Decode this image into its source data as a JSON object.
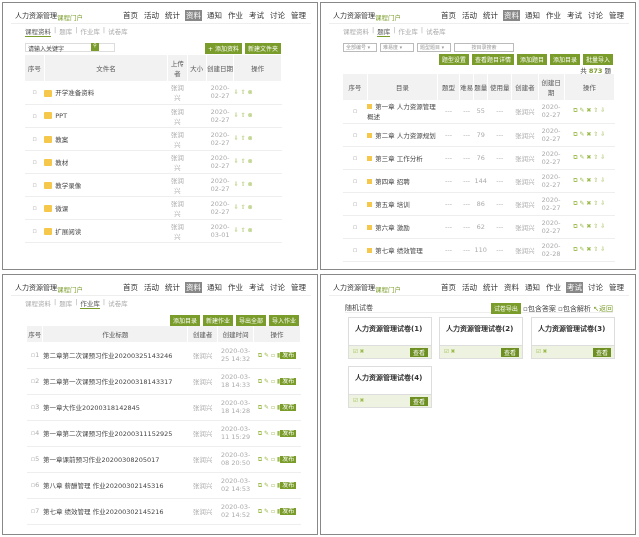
{
  "common": {
    "brand": "人力资源管理",
    "brand_sub": "课程门户",
    "nav": [
      "首页",
      "活动",
      "统计",
      "资料",
      "通知",
      "作业",
      "考试",
      "讨论",
      "管理"
    ],
    "subtabs": [
      "课程资料",
      "题库",
      "作业库",
      "试卷库"
    ],
    "author": "张润兴",
    "accent": "#7a9c2a"
  },
  "materials": {
    "active_nav": "资料",
    "active_tab": "课程资料",
    "search_placeholder": "请输入关键字",
    "add_btn": "+ 添加资料",
    "folder_btn": "新建文件夹",
    "headers": [
      "序号",
      "文件名",
      "上传者",
      "大小",
      "创建日期",
      "操作"
    ],
    "rows": [
      {
        "name": "开学准备资料",
        "date": "2020-02-27"
      },
      {
        "name": "PPT",
        "date": "2020-02-27"
      },
      {
        "name": "教案",
        "date": "2020-02-27"
      },
      {
        "name": "教材",
        "date": "2020-02-27"
      },
      {
        "name": "教学录像",
        "date": "2020-02-27"
      },
      {
        "name": "微课",
        "date": "2020-02-27"
      },
      {
        "name": "扩展阅读",
        "date": "2020-03-01"
      }
    ]
  },
  "bank": {
    "active_nav": "资料",
    "active_tab": "题库",
    "filters": [
      "全部编号",
      "难易度",
      "题型题目"
    ],
    "search_placeholder": "按目录搜索",
    "buttons": [
      "题型设置",
      "查看题目详情",
      "添加题目",
      "添加目录",
      "批量导入"
    ],
    "total_prefix": "共",
    "total": "873",
    "total_suffix": "题",
    "headers": [
      "序号",
      "目录",
      "题型",
      "难易",
      "题量",
      "使用量",
      "创建者",
      "创建日期",
      "操作"
    ],
    "rows": [
      {
        "name": "第一章 人力资源管理概述",
        "count": "55",
        "date": "2020-02-27"
      },
      {
        "name": "第二章 人力资源规划",
        "count": "79",
        "date": "2020-02-27"
      },
      {
        "name": "第三章 工作分析",
        "count": "76",
        "date": "2020-02-27"
      },
      {
        "name": "第四章 招聘",
        "count": "144",
        "date": "2020-02-27"
      },
      {
        "name": "第五章 培训",
        "count": "86",
        "date": "2020-02-27"
      },
      {
        "name": "第六章 激励",
        "count": "62",
        "date": "2020-02-27"
      },
      {
        "name": "第七章 绩效管理",
        "count": "110",
        "date": "2020-02-28"
      }
    ]
  },
  "homework": {
    "active_nav": "资料",
    "active_tab": "作业库",
    "buttons": [
      "添加目录",
      "新建作业",
      "导出全部",
      "导入作业"
    ],
    "headers": [
      "序号",
      "作业标题",
      "创建者",
      "创建时间",
      "操作"
    ],
    "publish": "发布",
    "rows": [
      {
        "no": "1",
        "title": "第二章第二次课预习作业20200325143246",
        "time": "2020-03-25 14:32"
      },
      {
        "no": "2",
        "title": "第二章第一次课预习作业20200318143317",
        "time": "2020-03-18 14:33"
      },
      {
        "no": "3",
        "title": "第一章大作业20200318142845",
        "time": "2020-03-18 14:28"
      },
      {
        "no": "4",
        "title": "第一章第二次课预习作业20200311152925",
        "time": "2020-03-11 15:29"
      },
      {
        "no": "5",
        "title": "第一章课前预习作业20200308205017",
        "time": "2020-03-08 20:50"
      },
      {
        "no": "6",
        "title": "第八章 薪酬管理 作业20200302145316",
        "time": "2020-03-02 14:53"
      },
      {
        "no": "7",
        "title": "第七章 绩效管理 作业20200302145216",
        "time": "2020-03-02 14:52"
      }
    ]
  },
  "exams": {
    "active_nav": "考试",
    "title": "随机试卷",
    "export_btn": "试卷导出",
    "opt1": "包含答案",
    "opt2": "包含解析",
    "back": "返回",
    "view": "查看",
    "papers": [
      "人力资源管理试卷(1)",
      "人力资源管理试卷(2)",
      "人力资源管理试卷(3)",
      "人力资源管理试卷(4)"
    ]
  }
}
